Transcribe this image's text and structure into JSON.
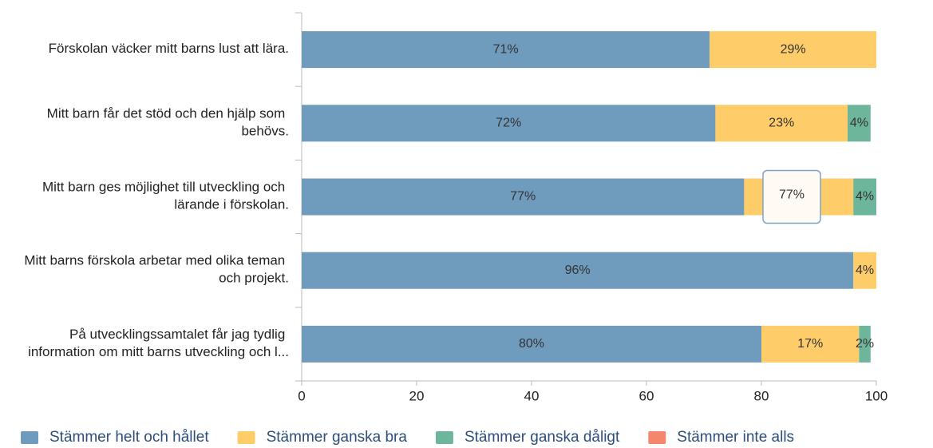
{
  "chart_data": {
    "type": "stacked_barh",
    "categories": [
      "Förskolan väcker mitt barns lust att lära.",
      "Mitt barn får det stöd och den hjälp som behövs.",
      "Mitt barn ges möjlighet till utveckling och lärande i förskolan.",
      "Mitt barns förskola arbetar med olika teman och projekt.",
      "På utvecklingssamtalet får jag tydlig information om mitt barns utveckling och l..."
    ],
    "series": [
      {
        "name": "Stämmer helt och hållet",
        "color": "#6f9bbd",
        "values": [
          71,
          72,
          77,
          96,
          80
        ],
        "value_labels": [
          "71%",
          "72%",
          "77%",
          "96%",
          "80%"
        ]
      },
      {
        "name": "Stämmer ganska bra",
        "color": "#ffcc6a",
        "values": [
          29,
          23,
          19,
          4,
          17
        ],
        "value_labels": [
          "29%",
          "23%",
          null,
          "4%",
          "17%"
        ]
      },
      {
        "name": "Stämmer ganska dåligt",
        "color": "#6db59b",
        "values": [
          0,
          4,
          4,
          0,
          2
        ],
        "value_labels": [
          null,
          "4%",
          "4%",
          null,
          "2%"
        ]
      },
      {
        "name": "Stämmer inte alls",
        "color": "#f4876b",
        "values": [
          0,
          0,
          0,
          0,
          0
        ],
        "value_labels": [
          null,
          null,
          null,
          null,
          null
        ]
      }
    ],
    "xlim": [
      0,
      100
    ],
    "xticks": [
      0,
      20,
      40,
      60,
      80,
      100
    ],
    "tooltip": {
      "text": "77%",
      "category": 2
    }
  }
}
